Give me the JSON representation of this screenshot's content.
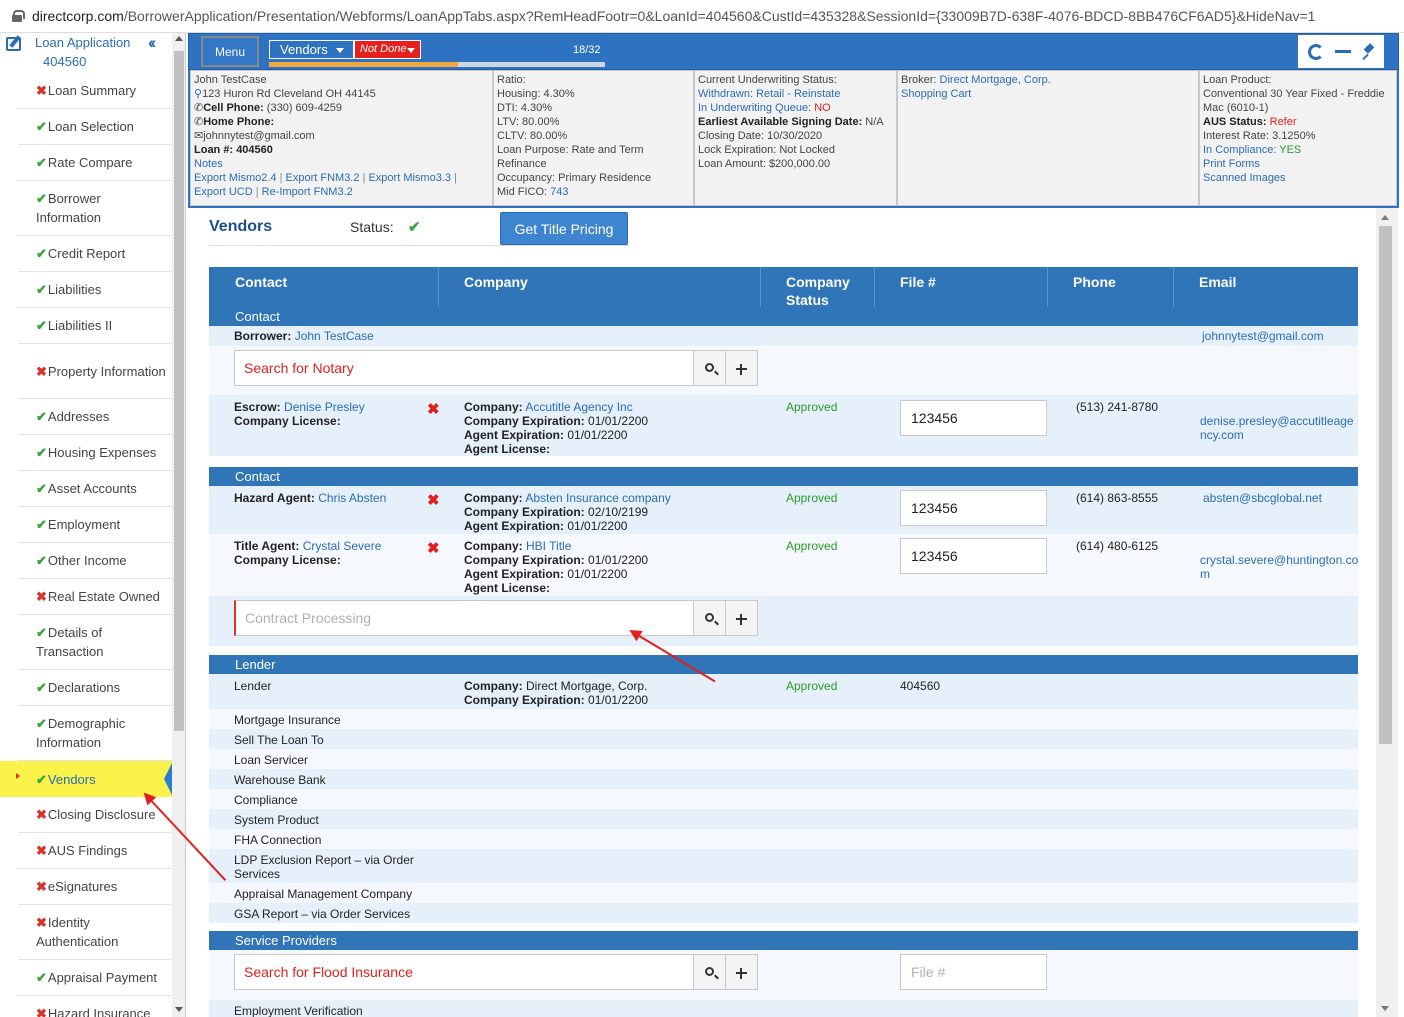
{
  "browser": {
    "url_host": "directcorp.com",
    "url_path": "/BorrowerApplication/Presentation/Webforms/LoanAppTabs.aspx?RemHeadFootr=0&LoanId=404560&CustId=435328&SessionId={33009B7D-638F-4076-BDCD-8BB476CF6AD5}&HideNav=1"
  },
  "sidebar": {
    "title": "Loan Application",
    "loan_number": "404560",
    "collapse_icon": "double-chevron-left-icon",
    "items": [
      {
        "label": "Loan Summary",
        "status": "x"
      },
      {
        "label": "Loan Selection",
        "status": "check"
      },
      {
        "label": "Rate Compare",
        "status": "check"
      },
      {
        "label": "Borrower Information",
        "status": "check"
      },
      {
        "label": "Credit Report",
        "status": "check"
      },
      {
        "label": "Liabilities",
        "status": "check"
      },
      {
        "label": "Liabilities II",
        "status": "check"
      },
      {
        "label": "Property Information",
        "status": "x"
      },
      {
        "label": "Addresses",
        "status": "check"
      },
      {
        "label": "Housing Expenses",
        "status": "check"
      },
      {
        "label": "Asset Accounts",
        "status": "check"
      },
      {
        "label": "Employment",
        "status": "check"
      },
      {
        "label": "Other Income",
        "status": "check"
      },
      {
        "label": "Real Estate Owned",
        "status": "x"
      },
      {
        "label": "Details of Transaction",
        "status": "check"
      },
      {
        "label": "Declarations",
        "status": "check"
      },
      {
        "label": "Demographic Information",
        "status": "check"
      },
      {
        "label": "Vendors",
        "status": "check",
        "active": true
      },
      {
        "label": "Closing Disclosure",
        "status": "x"
      },
      {
        "label": "AUS Findings",
        "status": "x"
      },
      {
        "label": "eSignatures",
        "status": "x"
      },
      {
        "label": "Identity Authentication",
        "status": "x"
      },
      {
        "label": "Appraisal Payment",
        "status": "check"
      },
      {
        "label": "Hazard Insurance",
        "status": "x"
      }
    ]
  },
  "topbar": {
    "menu_label": "Menu",
    "section_select": "Vendors",
    "status_select": "Not Done",
    "progress_text": "18/32",
    "progress_fraction": 0.5625
  },
  "info": {
    "borrower": {
      "name": "John TestCase",
      "address": "123 Huron Rd Cleveland OH 44145",
      "cell_label": "Cell Phone:",
      "cell": "(330) 609-4259",
      "home_label": "Home Phone:",
      "email": "johnnytest@gmail.com",
      "loan_label": "Loan #:",
      "loan": "404560",
      "notes": "Notes",
      "export_mismo24": "Export Mismo2.4",
      "export_fnm32": "Export FNM3.2",
      "export_mismo33": "Export Mismo3.3",
      "export_ucd": "Export UCD",
      "reimport": "Re-Import FNM3.2"
    },
    "ratios": {
      "ratio_label": "Ratio:",
      "housing": "Housing: 4.30%",
      "dti": "DTI: 4.30%",
      "ltv": "LTV: 80.00%",
      "cltv": "CLTV: 80.00%",
      "purpose": "Loan Purpose: Rate and Term Refinance",
      "occupancy": "Occupancy: Primary Residence",
      "fico_label": "Mid FICO:",
      "fico": "743"
    },
    "underwriting": {
      "status_label": "Current Underwriting Status:",
      "withdrawn": "Withdrawn: Retail - Reinstate",
      "queue_label": "In Underwriting Queue:",
      "queue": "NO",
      "signing_label": "Earliest Available Signing Date:",
      "signing": "N/A",
      "closing": "Closing Date: 10/30/2020",
      "lock": "Lock Expiration: Not Locked",
      "amount": "Loan Amount: $200,000.00"
    },
    "broker": {
      "label": "Broker:",
      "name": "Direct Mortgage, Corp.",
      "cart": "Shopping Cart"
    },
    "product": {
      "label": "Loan Product:",
      "name": "Conventional 30 Year Fixed - Freddie Mac (6010-1)",
      "aus_label": "AUS Status:",
      "aus": "Refer",
      "rate": "Interest Rate: 3.1250%",
      "compliance_label": "In Compliance:",
      "compliance": "YES",
      "print_forms": "Print Forms",
      "scanned": "Scanned Images"
    }
  },
  "vendors": {
    "title": "Vendors",
    "status_label": "Status:",
    "title_pricing_button": "Get Title Pricing",
    "columns": {
      "contact": "Contact",
      "company": "Company",
      "company_status": "Company Status",
      "file": "File #",
      "phone": "Phone",
      "email": "Email"
    },
    "contact_band": "Contact",
    "borrower_label": "Borrower:",
    "borrower_name": "John TestCase",
    "borrower_email": "johnnytest@gmail.com",
    "notary_placeholder": "Search for Notary",
    "escrow": {
      "role": "Escrow:",
      "name": "Denise Presley",
      "license_label": "Company License:",
      "company_label": "Company:",
      "company": "Accutitle Agency Inc",
      "cexp_label": "Company Expiration:",
      "cexp": "01/01/2200",
      "aexp_label": "Agent Expiration:",
      "aexp": "01/01/2200",
      "alic_label": "Agent License:",
      "status": "Approved",
      "file": "123456",
      "phone": "(513) 241-8780",
      "email": "denise.presley@accutitleagency.com",
      "email_l1": "denise.presley@accutitleage",
      "email_l2": "ncy.com"
    },
    "contact_band2": "Contact",
    "hazard": {
      "role": "Hazard Agent:",
      "name": "Chris Absten",
      "company_label": "Company:",
      "company": "Absten Insurance company",
      "cexp_label": "Company Expiration:",
      "cexp": "02/10/2199",
      "aexp_label": "Agent Expiration:",
      "aexp": "01/01/2200",
      "status": "Approved",
      "file": "123456",
      "phone": "(614) 863-8555",
      "email": "absten@sbcglobal.net"
    },
    "title_agent": {
      "role": "Title Agent:",
      "name": "Crystal Severe",
      "license_label": "Company License:",
      "company_label": "Company:",
      "company": "HBI Title",
      "cexp_label": "Company Expiration:",
      "cexp": "01/01/2200",
      "aexp_label": "Agent Expiration:",
      "aexp": "01/01/2200",
      "alic_label": "Agent License:",
      "status": "Approved",
      "file": "123456",
      "phone": "(614) 480-6125",
      "email_l1": "crystal.severe@huntington.co",
      "email_l2": "m"
    },
    "contract_placeholder": "Contract Processing",
    "lender_band": "Lender",
    "lender": {
      "label": "Lender",
      "company_label": "Company:",
      "company": "Direct Mortgage, Corp.",
      "cexp_label": "Company Expiration:",
      "cexp": "01/01/2200",
      "status": "Approved",
      "file": "404560"
    },
    "lender_rows": [
      "Mortgage Insurance",
      "Sell The Loan To",
      "Loan Servicer",
      "Warehouse Bank",
      "Compliance",
      "System Product",
      "FHA Connection",
      "LDP Exclusion Report – via Order Services",
      "Appraisal Management Company",
      "GSA Report – via Order Services"
    ],
    "service_band": "Service Providers",
    "flood_placeholder": "Search for Flood Insurance",
    "file_placeholder": "File #",
    "next_row": "Employment Verification"
  },
  "colors": {
    "accent": "#2f75b8",
    "approved": "#2b9a2b",
    "error": "#e0201e",
    "active_highlight": "#faf34a"
  }
}
